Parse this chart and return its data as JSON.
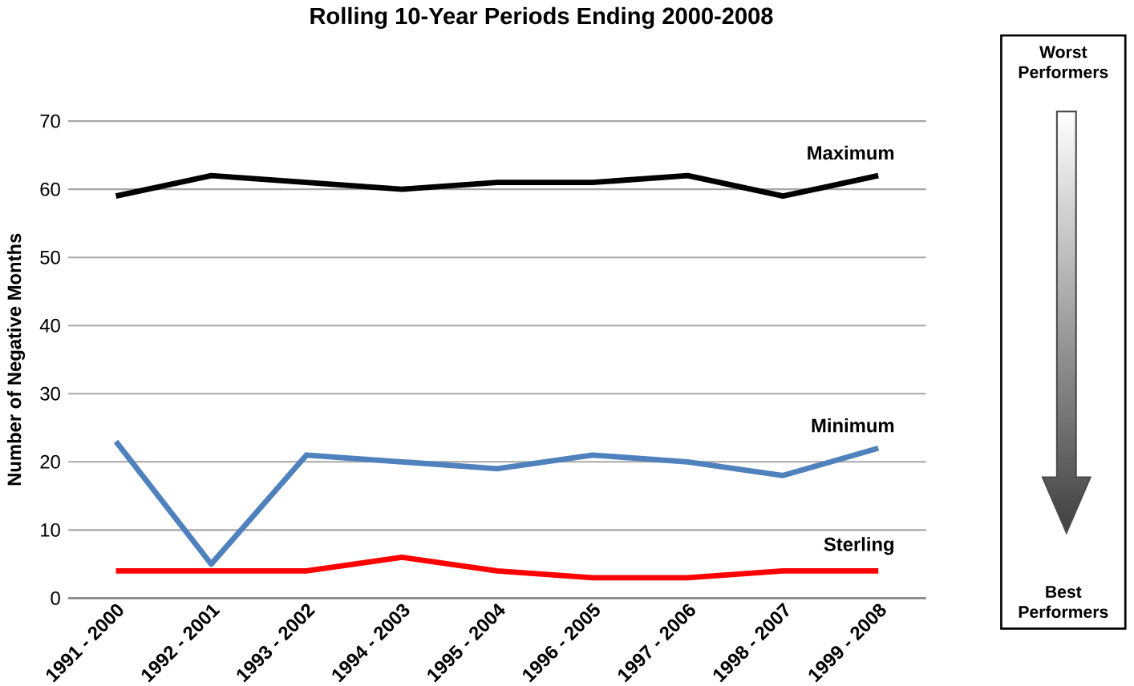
{
  "chart_data": {
    "type": "line",
    "title": "Rolling 10-Year Periods Ending 2000-2008",
    "ylabel": "Number of Negative Months",
    "categories": [
      "1991 - 2000",
      "1992 - 2001",
      "1993 - 2002",
      "1994 - 2003",
      "1995 - 2004",
      "1996 - 2005",
      "1997 - 2006",
      "1998 - 2007",
      "1999 - 2008"
    ],
    "series": [
      {
        "name": "Maximum",
        "color": "#000000",
        "values": [
          59,
          62,
          61,
          60,
          61,
          61,
          62,
          59,
          62
        ]
      },
      {
        "name": "Minimum",
        "color": "#4f81bd",
        "values": [
          23,
          5,
          21,
          20,
          19,
          21,
          20,
          18,
          22
        ]
      },
      {
        "name": "Sterling",
        "color": "#ff0000",
        "values": [
          4,
          4,
          4,
          6,
          4,
          3,
          3,
          4,
          4
        ]
      }
    ],
    "ylim": [
      0,
      70
    ],
    "yticks": [
      0,
      10,
      20,
      30,
      40,
      50,
      60,
      70
    ],
    "grid": "y",
    "annotations": [
      "Worst Performers",
      "Best Performers"
    ]
  }
}
